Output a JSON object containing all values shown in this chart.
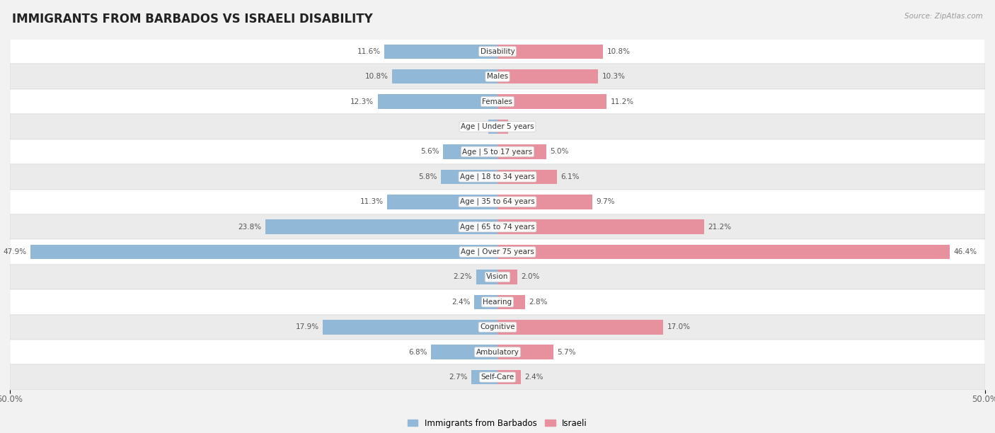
{
  "title": "IMMIGRANTS FROM BARBADOS VS ISRAELI DISABILITY",
  "source": "Source: ZipAtlas.com",
  "categories": [
    "Disability",
    "Males",
    "Females",
    "Age | Under 5 years",
    "Age | 5 to 17 years",
    "Age | 18 to 34 years",
    "Age | 35 to 64 years",
    "Age | 65 to 74 years",
    "Age | Over 75 years",
    "Vision",
    "Hearing",
    "Cognitive",
    "Ambulatory",
    "Self-Care"
  ],
  "left_values": [
    11.6,
    10.8,
    12.3,
    0.97,
    5.6,
    5.8,
    11.3,
    23.8,
    47.9,
    2.2,
    2.4,
    17.9,
    6.8,
    2.7
  ],
  "right_values": [
    10.8,
    10.3,
    11.2,
    1.1,
    5.0,
    6.1,
    9.7,
    21.2,
    46.4,
    2.0,
    2.8,
    17.0,
    5.7,
    2.4
  ],
  "left_label": "Immigrants from Barbados",
  "right_label": "Israeli",
  "left_color": "#92b8d8",
  "right_color": "#e8919e",
  "max_val": 50.0,
  "background_color": "#f2f2f2",
  "row_bg_white": "#ffffff",
  "row_bg_gray": "#ebebeb",
  "title_fontsize": 12,
  "bar_height": 0.58
}
